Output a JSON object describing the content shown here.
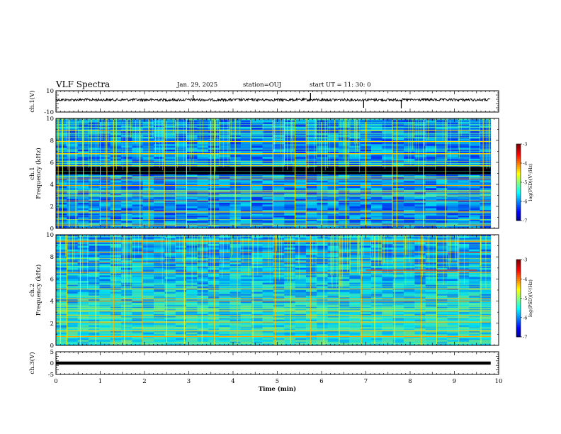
{
  "header": {
    "title": "VLF Spectra",
    "date": "Jan. 29, 2025",
    "station": "station=OUJ",
    "start": "start  UT =   11: 30: 0"
  },
  "chart_data": [
    {
      "type": "line",
      "panel": "ch1-waveform",
      "ylabel": "ch.1(V)",
      "ylim": [
        -10,
        10
      ],
      "yticks": [
        "10",
        "-10"
      ],
      "xlim": [
        0,
        10
      ],
      "baseline": 1.5,
      "noise_amplitude": 1.0,
      "spikes": [
        {
          "x": 3.1,
          "y": 6.0
        },
        {
          "x": 5.75,
          "y": 8.0
        },
        {
          "x": 6.95,
          "y": -6.0
        },
        {
          "x": 7.8,
          "y": -6.5
        }
      ],
      "data_end_x": 9.82,
      "color": "#000000"
    },
    {
      "type": "heatmap",
      "panel": "ch1-spectrogram",
      "ylabel": "ch.1\nFrequency (kHz)",
      "ylim": [
        0,
        10
      ],
      "yticks": [
        "0",
        "2",
        "4",
        "6",
        "8",
        "10"
      ],
      "xlim": [
        0,
        10
      ],
      "data_end_x": 9.82,
      "colorbar": {
        "label": "log(PSD)(V²/Hz)",
        "ticks": [
          "-3",
          "-4",
          "-5",
          "-6",
          "-7"
        ],
        "range": [
          -7,
          -3
        ]
      },
      "dark_band_khz": [
        4.9,
        5.6
      ],
      "strong_lines_khz": [
        0.3,
        1.5,
        2.5,
        3.3,
        3.9,
        4.5,
        5.7,
        6.8,
        7.9,
        8.9
      ],
      "impulse_times_min": [
        0.05,
        0.15,
        0.3,
        0.45,
        0.62,
        0.8,
        1.0,
        1.15,
        1.3,
        1.6,
        1.9,
        2.1,
        2.45,
        2.7,
        2.95,
        3.5,
        3.58,
        4.05,
        4.4,
        4.9,
        5.4,
        5.65,
        6.0,
        6.3,
        6.55,
        7.0,
        7.6,
        7.7,
        8.3,
        8.8,
        9.35,
        9.65
      ]
    },
    {
      "type": "heatmap",
      "panel": "ch2-spectrogram",
      "ylabel": "ch.2\nFrequency (kHz)",
      "ylim": [
        0,
        10
      ],
      "yticks": [
        "0",
        "2",
        "4",
        "6",
        "8",
        "10"
      ],
      "xlim": [
        0,
        10
      ],
      "data_end_x": 9.82,
      "colorbar": {
        "label": "log(PSD)(V²/Hz)",
        "ticks": [
          "-3",
          "-4",
          "-5",
          "-6",
          "-7"
        ],
        "range": [
          -7,
          -3
        ]
      },
      "strong_lines_khz": [
        0.8,
        1.3,
        2.1,
        2.7,
        3.1,
        4.0,
        4.2,
        5.1,
        6.6,
        7.5,
        8.4,
        9.4
      ],
      "impulse_times_min": [
        0.1,
        0.25,
        0.55,
        0.9,
        1.3,
        1.55,
        1.95,
        2.5,
        2.9,
        3.3,
        3.58,
        4.1,
        4.45,
        4.95,
        5.3,
        5.75,
        6.05,
        6.4,
        6.9,
        7.2,
        7.65,
        8.25,
        8.6,
        9.1,
        9.6
      ],
      "feature_band": {
        "x_from": 7.0,
        "x_to": 9.5,
        "khz": 6.8
      }
    },
    {
      "type": "line",
      "panel": "ch3-waveform",
      "ylabel": "ch.3(V)",
      "ylim": [
        -5,
        5
      ],
      "yticks": [
        "5",
        "0",
        "-5"
      ],
      "xlim": [
        0,
        10
      ],
      "xlabel": "Time (min)",
      "xticks": [
        "0",
        "1",
        "2",
        "3",
        "4",
        "5",
        "6",
        "7",
        "8",
        "9",
        "10"
      ],
      "baseline": 0,
      "data_end_x": 9.82,
      "color": "#000000"
    }
  ]
}
